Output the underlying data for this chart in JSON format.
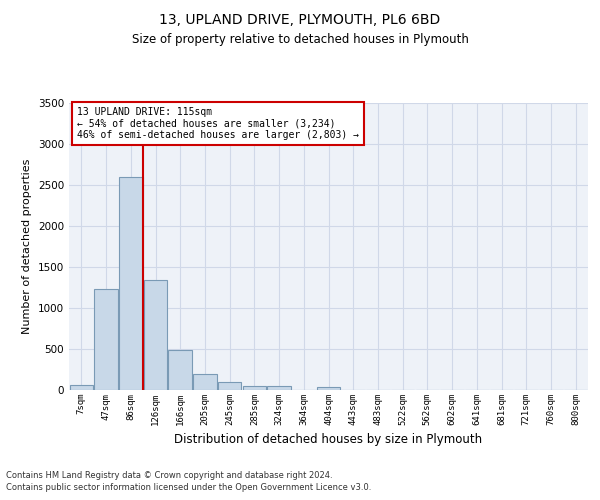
{
  "title": "13, UPLAND DRIVE, PLYMOUTH, PL6 6BD",
  "subtitle": "Size of property relative to detached houses in Plymouth",
  "xlabel": "Distribution of detached houses by size in Plymouth",
  "ylabel": "Number of detached properties",
  "bar_color": "#c8d8e8",
  "bar_edge_color": "#7a9ab5",
  "bin_labels": [
    "7sqm",
    "47sqm",
    "86sqm",
    "126sqm",
    "166sqm",
    "205sqm",
    "245sqm",
    "285sqm",
    "324sqm",
    "364sqm",
    "404sqm",
    "443sqm",
    "483sqm",
    "522sqm",
    "562sqm",
    "602sqm",
    "641sqm",
    "681sqm",
    "721sqm",
    "760sqm",
    "800sqm"
  ],
  "bar_heights": [
    60,
    1230,
    2590,
    1340,
    490,
    195,
    100,
    50,
    45,
    0,
    40,
    0,
    0,
    0,
    0,
    0,
    0,
    0,
    0,
    0,
    0
  ],
  "vline_x": 2.5,
  "vline_color": "#cc0000",
  "annotation_text": "13 UPLAND DRIVE: 115sqm\n← 54% of detached houses are smaller (3,234)\n46% of semi-detached houses are larger (2,803) →",
  "annotation_box_color": "#ffffff",
  "annotation_box_edge": "#cc0000",
  "ylim": [
    0,
    3500
  ],
  "yticks": [
    0,
    500,
    1000,
    1500,
    2000,
    2500,
    3000,
    3500
  ],
  "grid_color": "#d0d8e8",
  "bg_color": "#eef2f8",
  "title_fontsize": 10,
  "subtitle_fontsize": 8.5,
  "footer_line1": "Contains HM Land Registry data © Crown copyright and database right 2024.",
  "footer_line2": "Contains public sector information licensed under the Open Government Licence v3.0."
}
